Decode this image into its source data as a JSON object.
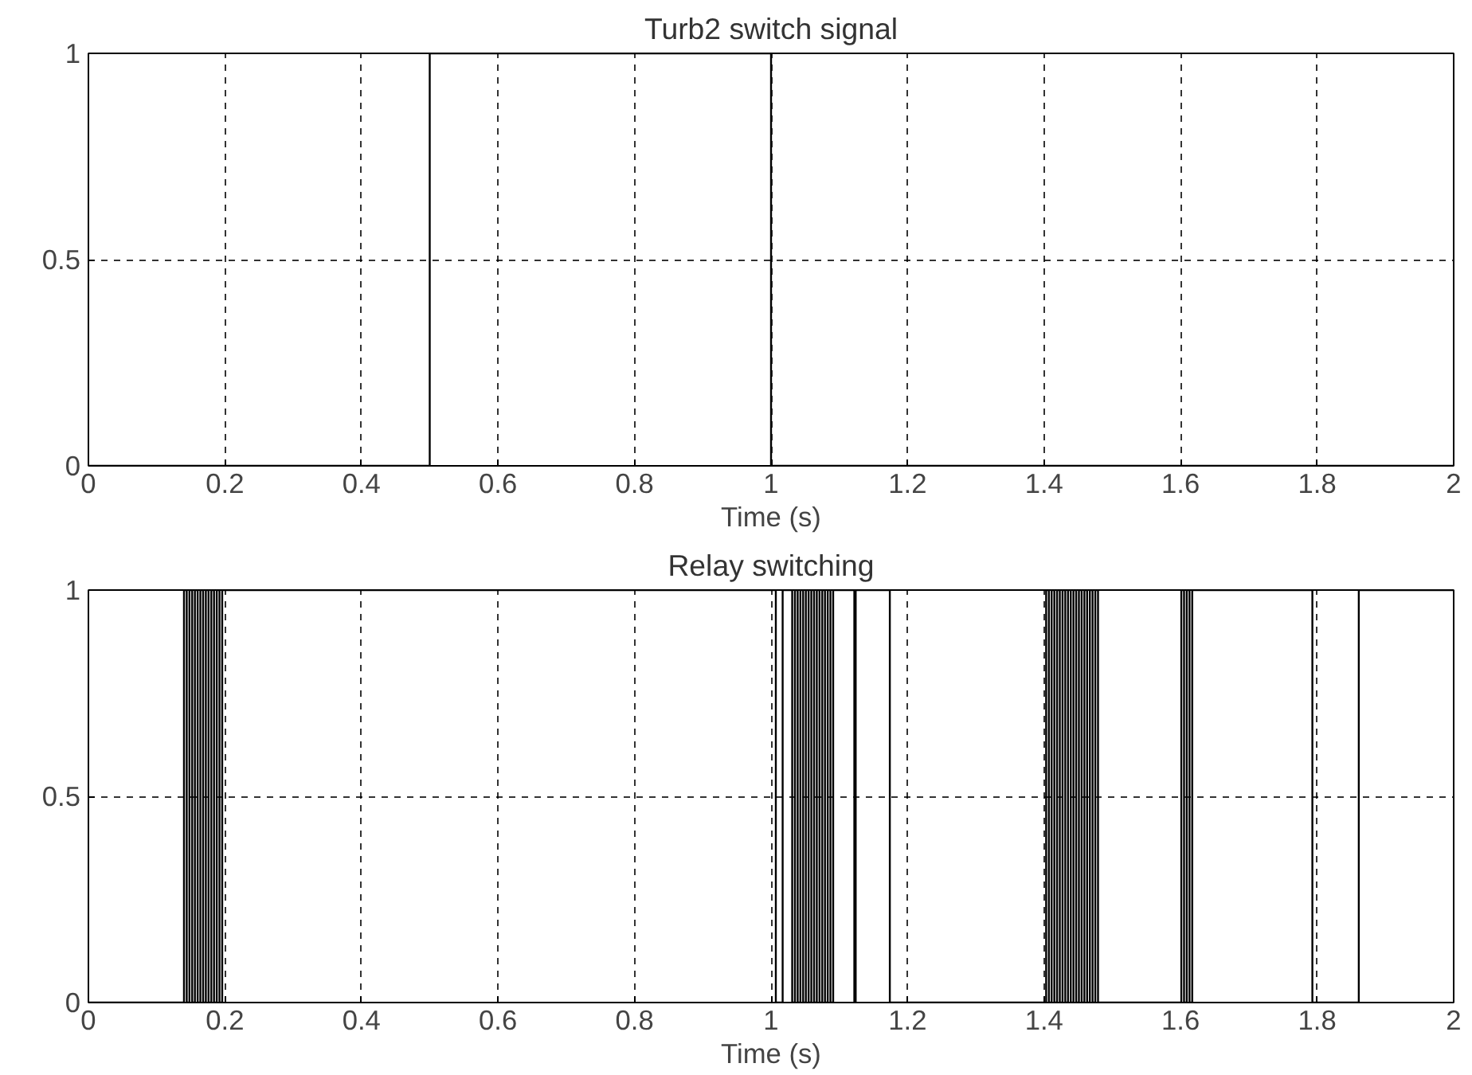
{
  "chart_data": [
    {
      "type": "step",
      "title": "Turb2 switch signal",
      "xlabel": "Time (s)",
      "xlim": [
        0,
        2
      ],
      "ylim": [
        0,
        1
      ],
      "xticks": [
        0,
        0.2,
        0.4,
        0.6,
        0.8,
        1,
        1.2,
        1.4,
        1.6,
        1.8,
        2
      ],
      "yticks": [
        0,
        0.5,
        1
      ],
      "grid": true,
      "line_style": "solid",
      "series": [
        {
          "color": "#000000",
          "x": [
            0,
            0.5,
            1,
            2
          ],
          "values": [
            0,
            1,
            0,
            0
          ]
        }
      ]
    },
    {
      "type": "step",
      "title": "Relay switching",
      "xlabel": "Time (s)",
      "xlim": [
        0,
        2
      ],
      "ylim": [
        0,
        1
      ],
      "xticks": [
        0,
        0.2,
        0.4,
        0.6,
        0.8,
        1,
        1.2,
        1.4,
        1.6,
        1.8,
        2
      ],
      "yticks": [
        0,
        0.5,
        1
      ],
      "grid": true,
      "line_style": "solid",
      "series": [
        {
          "color": "#000000",
          "x": [
            0,
            0.14,
            0.144,
            0.148,
            0.152,
            0.156,
            0.16,
            0.164,
            0.168,
            0.172,
            0.176,
            0.18,
            0.184,
            0.188,
            0.192,
            0.196,
            1.007,
            1.017,
            1.031,
            1.035,
            1.039,
            1.043,
            1.047,
            1.051,
            1.055,
            1.059,
            1.063,
            1.067,
            1.071,
            1.075,
            1.079,
            1.083,
            1.087,
            1.091,
            1.122,
            1.124,
            1.174,
            1.403,
            1.407,
            1.411,
            1.415,
            1.419,
            1.423,
            1.427,
            1.431,
            1.435,
            1.439,
            1.443,
            1.447,
            1.451,
            1.455,
            1.459,
            1.463,
            1.467,
            1.471,
            1.475,
            1.479,
            1.601,
            1.605,
            1.609,
            1.613,
            1.617,
            1.793,
            1.861,
            2
          ],
          "values": [
            0,
            1,
            0,
            1,
            0,
            1,
            0,
            1,
            0,
            1,
            0,
            1,
            0,
            1,
            0,
            1,
            0,
            1,
            0,
            1,
            0,
            1,
            0,
            1,
            0,
            1,
            0,
            1,
            0,
            1,
            0,
            1,
            0,
            1,
            0,
            1,
            0,
            1,
            0,
            1,
            0,
            1,
            0,
            1,
            0,
            1,
            0,
            1,
            0,
            1,
            0,
            1,
            0,
            1,
            0,
            1,
            0,
            1,
            0,
            1,
            0,
            1,
            0,
            1,
            1
          ]
        }
      ]
    }
  ]
}
